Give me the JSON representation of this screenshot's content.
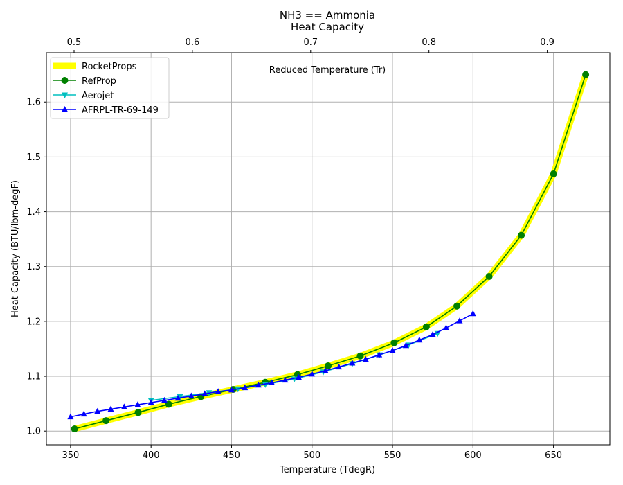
{
  "chart_data": {
    "type": "line",
    "title": "NH3 == Ammonia",
    "subtitle": "Heat Capacity",
    "xlabel": "Temperature (TdegR)",
    "ylabel": "Heat Capacity (BTU/lbm-degF)",
    "x2label": "Reduced Temperature (Tr)",
    "xlim": [
      335,
      685
    ],
    "ylim": [
      0.975,
      1.69
    ],
    "x2lim": [
      0.4766,
      0.9529
    ],
    "xticks": [
      350,
      400,
      450,
      500,
      550,
      600,
      650
    ],
    "yticks": [
      1.0,
      1.1,
      1.2,
      1.3,
      1.4,
      1.5,
      1.6
    ],
    "x2ticks": [
      0.5,
      0.6,
      0.7,
      0.8,
      0.9
    ],
    "grid": true,
    "legend_position": "top-left",
    "series": [
      {
        "name": "RocketProps",
        "color": "#ffff00",
        "marker": "none",
        "x": [
          352.5,
          372,
          392,
          411,
          431,
          451,
          471,
          491,
          510,
          530,
          551,
          571,
          590,
          610,
          630,
          650,
          670
        ],
        "y": [
          1.004,
          1.019,
          1.034,
          1.049,
          1.063,
          1.076,
          1.089,
          1.103,
          1.119,
          1.137,
          1.161,
          1.19,
          1.228,
          1.282,
          1.357,
          1.469,
          1.65
        ]
      },
      {
        "name": "RefProp",
        "color": "#008000",
        "marker": "circle",
        "x": [
          352.5,
          372,
          392,
          411,
          431,
          451,
          471,
          491,
          510,
          530,
          551,
          571,
          590,
          610,
          630,
          650,
          670
        ],
        "y": [
          1.004,
          1.019,
          1.034,
          1.049,
          1.063,
          1.076,
          1.089,
          1.103,
          1.119,
          1.137,
          1.161,
          1.19,
          1.228,
          1.282,
          1.357,
          1.469,
          1.65
        ]
      },
      {
        "name": "Aerojet",
        "color": "#00bfbf",
        "marker": "triangle-down",
        "x": [
          400,
          418,
          436,
          454,
          471,
          489,
          507,
          525,
          542,
          560,
          578
        ],
        "y": [
          1.056,
          1.063,
          1.07,
          1.077,
          1.085,
          1.095,
          1.108,
          1.123,
          1.139,
          1.157,
          1.178
        ]
      },
      {
        "name": "AFRPL-TR-69-149",
        "color": "#0000ff",
        "marker": "triangle-up",
        "x": [
          350,
          358.3,
          366.7,
          375,
          383.3,
          391.7,
          400,
          408.3,
          416.7,
          425,
          433.3,
          441.7,
          450,
          458.3,
          466.7,
          475,
          483.3,
          491.7,
          500,
          508.3,
          516.7,
          525,
          533.3,
          541.7,
          550,
          558.3,
          566.7,
          575,
          583.3,
          591.7,
          600
        ],
        "y": [
          1.026,
          1.031,
          1.036,
          1.04,
          1.044,
          1.048,
          1.052,
          1.056,
          1.06,
          1.064,
          1.068,
          1.072,
          1.075,
          1.079,
          1.084,
          1.088,
          1.093,
          1.098,
          1.104,
          1.11,
          1.117,
          1.124,
          1.131,
          1.139,
          1.147,
          1.156,
          1.166,
          1.176,
          1.188,
          1.201,
          1.214
        ]
      }
    ]
  }
}
